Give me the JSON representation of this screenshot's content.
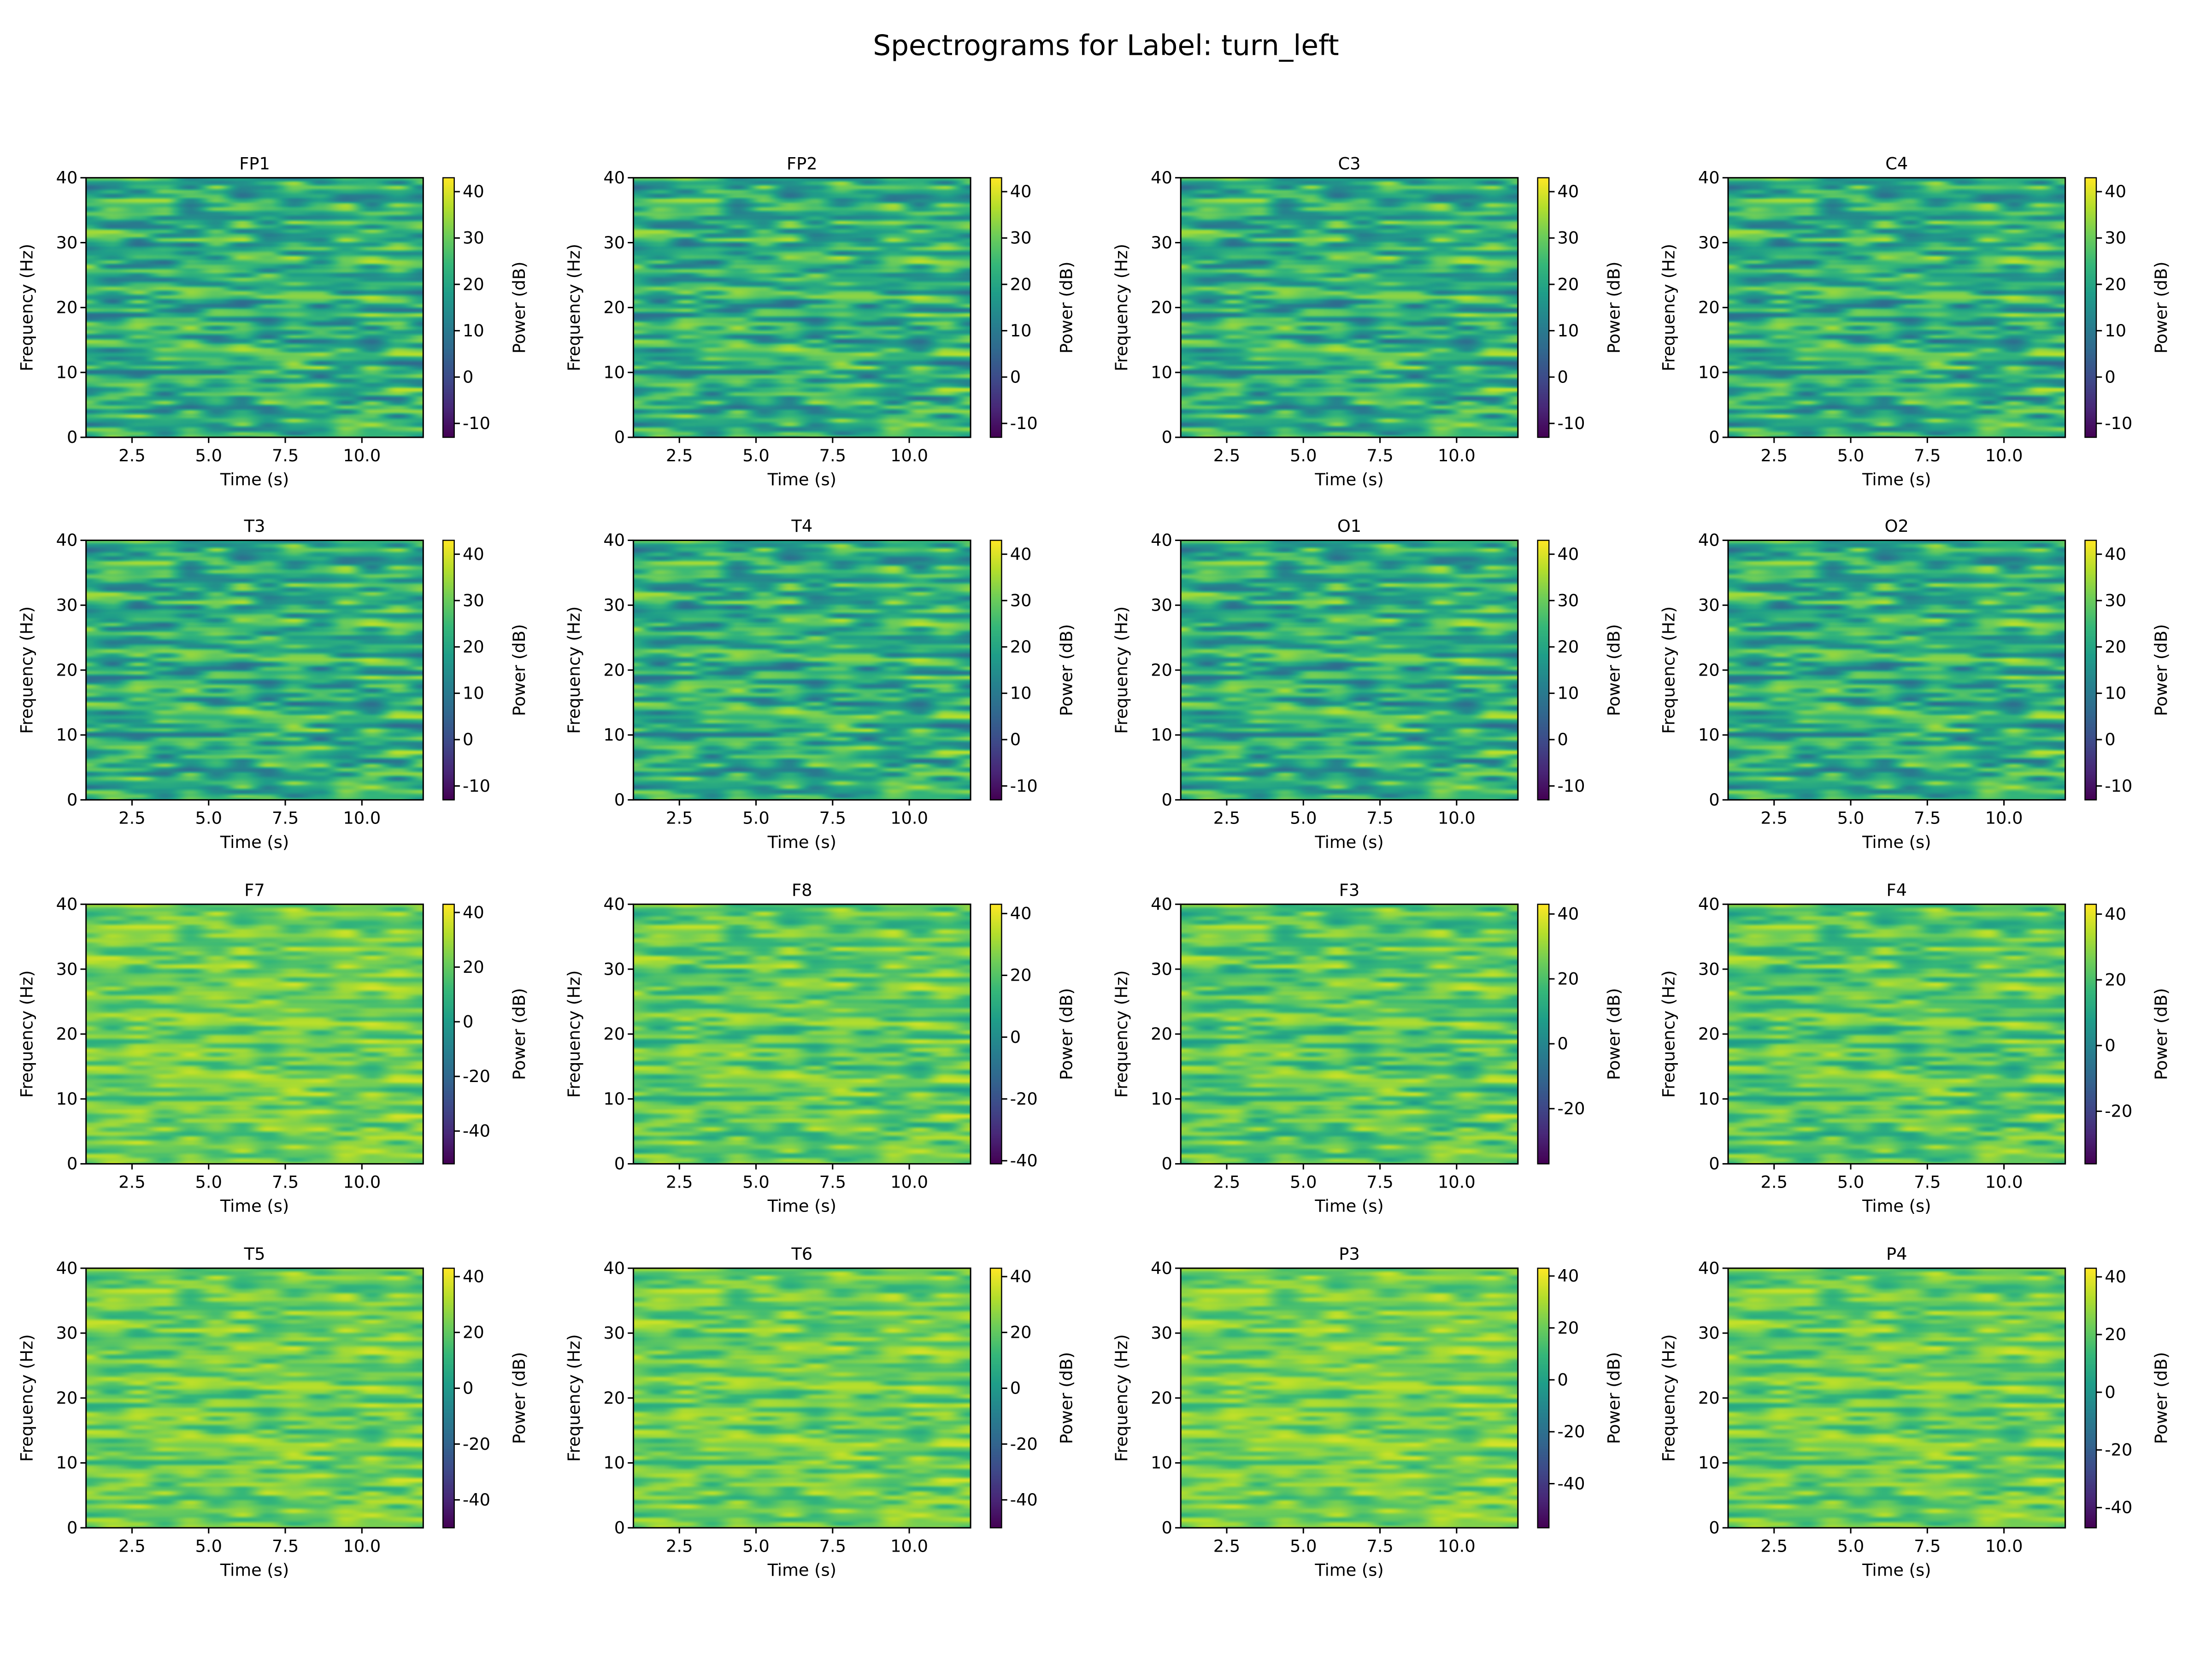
{
  "title": "Spectrograms for Label: turn_left",
  "chart_data": {
    "type": "heatmap",
    "title": "Spectrograms for Label: turn_left",
    "layout": "4x4 grid",
    "colormap": "viridis",
    "xlabel": "Time (s)",
    "ylabel": "Frequency (Hz)",
    "colorbar_label": "Power (dB)",
    "xlim": [
      1.0,
      12.0
    ],
    "ylim": [
      0,
      40
    ],
    "xticks": [
      "2.5",
      "5.0",
      "7.5",
      "10.0"
    ],
    "yticks": [
      "0",
      "10",
      "20",
      "30",
      "40"
    ],
    "panels": [
      {
        "name": "FP1",
        "clim": [
          -13,
          43
        ],
        "cticks": [
          "-10",
          "0",
          "10",
          "20",
          "30",
          "40"
        ]
      },
      {
        "name": "FP2",
        "clim": [
          -13,
          43
        ],
        "cticks": [
          "-10",
          "0",
          "10",
          "20",
          "30",
          "40"
        ]
      },
      {
        "name": "C3",
        "clim": [
          -13,
          43
        ],
        "cticks": [
          "-10",
          "0",
          "10",
          "20",
          "30",
          "40"
        ]
      },
      {
        "name": "C4",
        "clim": [
          -13,
          43
        ],
        "cticks": [
          "-10",
          "0",
          "10",
          "20",
          "30",
          "40"
        ]
      },
      {
        "name": "T3",
        "clim": [
          -13,
          43
        ],
        "cticks": [
          "-10",
          "0",
          "10",
          "20",
          "30",
          "40"
        ]
      },
      {
        "name": "T4",
        "clim": [
          -13,
          43
        ],
        "cticks": [
          "-10",
          "0",
          "10",
          "20",
          "30",
          "40"
        ]
      },
      {
        "name": "O1",
        "clim": [
          -13,
          43
        ],
        "cticks": [
          "-10",
          "0",
          "10",
          "20",
          "30",
          "40"
        ]
      },
      {
        "name": "O2",
        "clim": [
          -13,
          43
        ],
        "cticks": [
          "-10",
          "0",
          "10",
          "20",
          "30",
          "40"
        ]
      },
      {
        "name": "F7",
        "clim": [
          -52,
          43
        ],
        "cticks": [
          "-40",
          "-20",
          "0",
          "20",
          "40"
        ]
      },
      {
        "name": "F8",
        "clim": [
          -41,
          43
        ],
        "cticks": [
          "-40",
          "-20",
          "0",
          "20",
          "40"
        ]
      },
      {
        "name": "F3",
        "clim": [
          -37,
          43
        ],
        "cticks": [
          "-20",
          "0",
          "20",
          "40"
        ]
      },
      {
        "name": "F4",
        "clim": [
          -36,
          43
        ],
        "cticks": [
          "-20",
          "0",
          "20",
          "40"
        ]
      },
      {
        "name": "T5",
        "clim": [
          -50,
          43
        ],
        "cticks": [
          "-40",
          "-20",
          "0",
          "20",
          "40"
        ]
      },
      {
        "name": "T6",
        "clim": [
          -50,
          43
        ],
        "cticks": [
          "-40",
          "-20",
          "0",
          "20",
          "40"
        ]
      },
      {
        "name": "P3",
        "clim": [
          -57,
          43
        ],
        "cticks": [
          "-40",
          "-20",
          "0",
          "20",
          "40"
        ]
      },
      {
        "name": "P4",
        "clim": [
          -47,
          43
        ],
        "cticks": [
          "-40",
          "-20",
          "0",
          "20",
          "40"
        ]
      }
    ]
  }
}
